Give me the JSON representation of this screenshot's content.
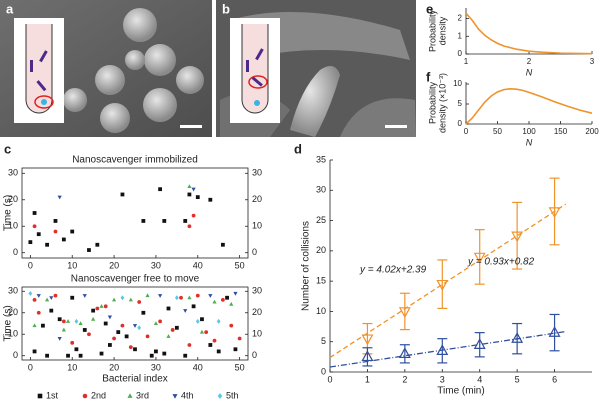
{
  "panel_labels": [
    "a",
    "b",
    "c",
    "d",
    "e",
    "f"
  ],
  "chart_data": [
    {
      "type": "line",
      "xlabel": "N",
      "ylabel": [
        "Probability",
        "density"
      ],
      "color": "#f0932b",
      "x": [
        1,
        1.1,
        1.2,
        1.3,
        1.4,
        1.5,
        1.6,
        1.8,
        2,
        2.2,
        2.5,
        3
      ],
      "values": [
        2.3,
        1.9,
        1.4,
        1.05,
        0.8,
        0.6,
        0.45,
        0.27,
        0.16,
        0.1,
        0.05,
        0.02
      ],
      "xlim": [
        1,
        3
      ],
      "xticks": [
        1,
        2,
        3
      ],
      "ylim": [
        0,
        2.6
      ],
      "yticks": [
        0,
        1,
        2
      ]
    },
    {
      "type": "line",
      "xlabel": "N",
      "ylabel": [
        "Probability",
        "density (×10⁻³)"
      ],
      "color": "#f0932b",
      "x": [
        0,
        10,
        20,
        30,
        40,
        50,
        60,
        70,
        80,
        90,
        100,
        120,
        140,
        160,
        180,
        200
      ],
      "values": [
        0,
        1.5,
        3.5,
        5.5,
        7,
        8,
        8.6,
        8.8,
        8.7,
        8.4,
        7.9,
        6.8,
        5.6,
        4.5,
        3.5,
        2.7
      ],
      "xlim": [
        0,
        200
      ],
      "xticks": [
        0,
        50,
        100,
        150,
        200
      ],
      "ylim": [
        0,
        10.5
      ],
      "yticks": [
        0,
        5,
        10
      ]
    },
    {
      "type": "scatter",
      "title": "Nanoscavenger immobilized",
      "ylabel": "Time (s)",
      "xlim": [
        -2,
        52
      ],
      "xticks": [
        0,
        10,
        20,
        30,
        40,
        50
      ],
      "ylim": [
        -2,
        32
      ],
      "yticks": [
        0,
        10,
        20,
        30
      ],
      "series": [
        {
          "color": "#111111",
          "marker": "square",
          "x": [
            0,
            1,
            2,
            4,
            6,
            8,
            10,
            14,
            16,
            22,
            27,
            31,
            32,
            37,
            38,
            40,
            43,
            46
          ],
          "values": [
            4,
            15,
            7,
            3,
            12,
            5,
            8,
            1,
            3,
            22,
            12,
            24,
            12,
            12,
            22,
            21,
            20,
            3
          ]
        },
        {
          "color": "#e0302a",
          "marker": "circle",
          "x": [
            1,
            6,
            38,
            39
          ],
          "values": [
            10,
            8,
            10,
            14
          ]
        },
        {
          "color": "#4caf50",
          "marker": "triangle",
          "x": [
            38
          ],
          "values": [
            25
          ]
        },
        {
          "color": "#2f4f9e",
          "marker": "triangle-down",
          "x": [
            7,
            39
          ],
          "values": [
            21,
            24
          ]
        }
      ]
    },
    {
      "type": "scatter",
      "title": "Nanoscavenger free to move",
      "ylabel": "Time (s)",
      "xlabel": "Bacterial index",
      "xlim": [
        -2,
        52
      ],
      "xticks": [
        0,
        10,
        20,
        30,
        40,
        50
      ],
      "ylim": [
        -2,
        32
      ],
      "yticks": [
        0,
        10,
        20,
        30
      ],
      "series": [
        {
          "name": "1st",
          "color": "#111111",
          "marker": "square",
          "x": [
            1,
            3,
            4,
            5,
            7,
            9,
            10,
            11,
            12,
            13,
            15,
            17,
            18,
            19,
            21,
            23,
            25,
            27,
            29,
            30,
            32,
            33,
            35,
            37,
            39,
            41,
            43,
            45,
            47,
            49
          ],
          "values": [
            2,
            14,
            0,
            21,
            17,
            0,
            27,
            3,
            0,
            12,
            21,
            1,
            15,
            5,
            11,
            9,
            3,
            20,
            0,
            2,
            1,
            22,
            13,
            0,
            23,
            17,
            5,
            2,
            27,
            3
          ]
        },
        {
          "name": "2nd",
          "color": "#e0302a",
          "marker": "circle",
          "x": [
            1,
            2,
            6,
            8,
            10,
            14,
            16,
            18,
            20,
            22,
            24,
            26,
            28,
            31,
            34,
            36,
            38,
            40,
            42,
            44,
            46,
            48,
            50
          ],
          "values": [
            26,
            20,
            28,
            16,
            6,
            10,
            22,
            23,
            8,
            14,
            4,
            25,
            9,
            16,
            12,
            27,
            5,
            28,
            11,
            7,
            26,
            14,
            8
          ]
        },
        {
          "name": "3rd",
          "color": "#4caf50",
          "marker": "triangle",
          "x": [
            1,
            4,
            8,
            9,
            12,
            15,
            17,
            20,
            24,
            28,
            30,
            33,
            38,
            41,
            44,
            48
          ],
          "values": [
            14,
            26,
            12,
            16,
            15,
            17,
            23,
            26,
            26,
            28,
            15,
            9,
            27,
            11,
            25,
            24
          ]
        },
        {
          "name": "4th",
          "color": "#2f4f9e",
          "marker": "triangle-down",
          "x": [
            2,
            5,
            7,
            13,
            19,
            25,
            31,
            37,
            43,
            49
          ],
          "values": [
            28,
            27,
            8,
            28,
            18,
            14,
            28,
            21,
            28,
            29
          ]
        },
        {
          "name": "5th",
          "color": "#5bc8e8",
          "marker": "diamond",
          "x": [
            0,
            11,
            22,
            26,
            35,
            40,
            45
          ],
          "values": [
            29,
            16,
            27,
            13,
            27,
            16,
            16
          ]
        }
      ]
    },
    {
      "type": "errorbar",
      "xlabel": "Time (min)",
      "ylabel": "Number of collisions",
      "x": [
        1,
        2,
        3,
        4,
        5,
        6
      ],
      "xlim": [
        0,
        7
      ],
      "xticks": [
        0,
        1,
        2,
        3,
        4,
        5,
        6
      ],
      "ylim": [
        0,
        35
      ],
      "yticks": [
        0,
        5,
        10,
        15,
        20,
        25,
        30,
        35
      ],
      "series": [
        {
          "color": "#f0932b",
          "marker": "triangle-down",
          "values": [
            5.5,
            10,
            14.5,
            19,
            22.5,
            26.5
          ],
          "errors": [
            2.5,
            3,
            4,
            4.5,
            5.5,
            5.5
          ],
          "fit": {
            "slope": 4.02,
            "intercept": 2.39,
            "label": "y = 4.02x+2.39"
          }
        },
        {
          "color": "#2f4f9e",
          "marker": "triangle",
          "values": [
            2.5,
            3,
            3.5,
            4.5,
            5.5,
            6.5
          ],
          "errors": [
            1.5,
            1.5,
            2,
            2,
            2.5,
            3
          ],
          "fit": {
            "slope": 0.93,
            "intercept": 0.82,
            "label": "y = 0.93x+0.82"
          }
        }
      ]
    }
  ]
}
